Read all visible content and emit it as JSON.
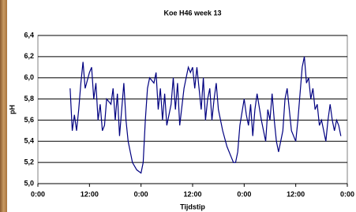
{
  "chart_data": {
    "type": "line",
    "title": "Koe H46 week 13",
    "x_label": "Tijdstip",
    "y_label": "pH",
    "x": [
      7.5,
      8,
      8.5,
      9,
      9.5,
      10,
      10.5,
      11,
      12,
      12.5,
      13,
      13.5,
      14,
      14.5,
      15,
      15.5,
      16,
      17,
      17.5,
      18,
      18.5,
      19,
      19.5,
      20,
      20.5,
      21,
      21.5,
      22,
      23,
      24,
      24.5,
      25,
      25.5,
      26,
      27,
      27.5,
      28,
      28.5,
      29,
      29.5,
      30,
      31,
      31.5,
      32,
      32.5,
      33,
      34,
      35,
      35.5,
      36,
      36.5,
      37,
      38,
      38.5,
      39,
      39.5,
      40,
      40.5,
      41,
      41.5,
      42,
      43,
      44,
      45,
      45.5,
      46,
      46.5,
      47,
      48,
      48.5,
      49,
      49.5,
      50,
      50.5,
      51,
      52,
      52.5,
      53,
      53.5,
      54,
      54.5,
      55,
      55.5,
      56,
      57,
      57.5,
      58,
      58.5,
      59,
      60,
      60.5,
      61,
      61.5,
      62,
      62.5,
      63,
      63.5,
      64,
      64.5,
      65,
      65.5,
      66,
      67,
      67.5,
      68,
      68.5,
      69,
      69.5,
      70,
      70.5
    ],
    "series": [
      {
        "name": "pH",
        "color": "#000080",
        "values": [
          5.9,
          5.5,
          5.65,
          5.5,
          5.7,
          5.95,
          6.15,
          5.9,
          6.05,
          6.1,
          5.8,
          5.95,
          5.6,
          5.75,
          5.5,
          5.55,
          5.8,
          5.75,
          5.9,
          5.6,
          5.85,
          5.45,
          5.7,
          5.95,
          5.6,
          5.4,
          5.3,
          5.2,
          5.13,
          5.1,
          5.2,
          5.6,
          5.9,
          6.0,
          5.95,
          6.05,
          5.7,
          5.9,
          5.6,
          5.85,
          5.55,
          5.75,
          6.0,
          5.7,
          5.95,
          5.55,
          5.9,
          6.1,
          6.05,
          6.1,
          5.9,
          6.1,
          5.7,
          6.0,
          5.6,
          5.8,
          5.9,
          5.6,
          5.8,
          5.95,
          5.7,
          5.5,
          5.35,
          5.25,
          5.2,
          5.2,
          5.3,
          5.55,
          5.8,
          5.65,
          5.55,
          5.75,
          5.45,
          5.7,
          5.85,
          5.6,
          5.5,
          5.4,
          5.7,
          5.6,
          5.85,
          5.6,
          5.4,
          5.3,
          5.5,
          5.8,
          5.9,
          5.7,
          5.5,
          5.4,
          5.6,
          5.85,
          6.1,
          6.2,
          5.95,
          6.0,
          5.8,
          5.9,
          5.7,
          5.75,
          5.55,
          5.6,
          5.4,
          5.6,
          5.75,
          5.6,
          5.5,
          5.6,
          5.55,
          5.45
        ]
      }
    ],
    "xlim": [
      0,
      72
    ],
    "xticks": [
      {
        "value": 0,
        "label": "0:00"
      },
      {
        "value": 12,
        "label": "12:00"
      },
      {
        "value": 24,
        "label": "0:00"
      },
      {
        "value": 36,
        "label": "12:00"
      },
      {
        "value": 48,
        "label": "0:00"
      },
      {
        "value": 60,
        "label": "12:00"
      },
      {
        "value": 72,
        "label": "0:00"
      }
    ],
    "ylim": [
      5.0,
      6.4
    ],
    "yticks": [
      {
        "value": 5.0,
        "label": "5,0"
      },
      {
        "value": 5.2,
        "label": "5,2"
      },
      {
        "value": 5.4,
        "label": "5,4"
      },
      {
        "value": 5.6,
        "label": "5,6"
      },
      {
        "value": 5.8,
        "label": "5,8"
      },
      {
        "value": 6.0,
        "label": "6,0"
      },
      {
        "value": 6.2,
        "label": "6,2"
      },
      {
        "value": 6.4,
        "label": "6,4"
      }
    ],
    "grid": true
  }
}
